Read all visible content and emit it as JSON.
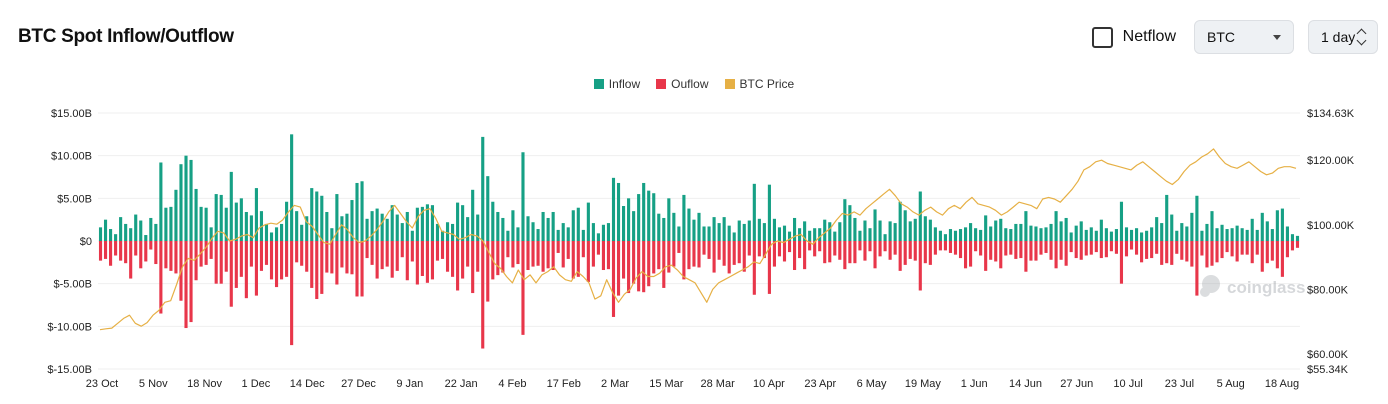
{
  "header": {
    "title": "BTC Spot Inflow/Outflow",
    "netflow_label": "Netflow",
    "coin_selected": "BTC",
    "period_selected": "1 day"
  },
  "colors": {
    "inflow": "#16a085",
    "outflow": "#e8364a",
    "price": "#e6b045"
  },
  "watermark": "coinglass",
  "chart_data": {
    "type": "bar",
    "legend": [
      "Inflow",
      "Ouflow",
      "BTC Price"
    ],
    "legend_position": "top-center",
    "y_left": {
      "ticks": [
        "$15.00B",
        "$10.00B",
        "$5.00B",
        "$0",
        "$-5.00B",
        "$-10.00B",
        "$-15.00B"
      ],
      "range": [
        -15,
        15
      ],
      "unit": "B"
    },
    "y_right": {
      "ticks": [
        "$134.63K",
        "$120.00K",
        "$100.00K",
        "$80.00K",
        "$60.00K",
        "$55.34K"
      ],
      "range": [
        55.34,
        134.63
      ],
      "unit": "K"
    },
    "x_ticks": [
      "23 Oct",
      "5 Nov",
      "18 Nov",
      "1 Dec",
      "14 Dec",
      "27 Dec",
      "9 Jan",
      "22 Jan",
      "4 Feb",
      "17 Feb",
      "2 Mar",
      "15 Mar",
      "28 Mar",
      "10 Apr",
      "23 Apr",
      "6 May",
      "19 May",
      "1 Jun",
      "14 Jun",
      "27 Jun",
      "10 Jul",
      "23 Jul",
      "5 Aug",
      "18 Aug"
    ],
    "start_date": "23 Oct",
    "end_date": "20 Aug",
    "grid": true,
    "series": [
      {
        "name": "Inflow",
        "values": [
          1.6,
          2.5,
          1.4,
          0.8,
          2.8,
          2.0,
          1.5,
          3.1,
          2.4,
          0.7,
          2.7,
          2.0,
          9.2,
          3.9,
          4.0,
          6.0,
          9.0,
          10.0,
          9.5,
          6.1,
          4.0,
          3.9,
          1.6,
          5.5,
          5.4,
          3.9,
          8.1,
          4.5,
          5.0,
          3.4,
          3.0,
          6.2,
          3.5,
          2.0,
          1.0,
          1.6,
          2.0,
          4.6,
          12.5,
          3.5,
          1.9,
          2.9,
          6.2,
          5.8,
          5.3,
          3.4,
          1.5,
          5.5,
          2.9,
          3.2,
          4.8,
          6.8,
          7.0,
          2.6,
          3.5,
          3.8,
          3.2,
          2.6,
          4.2,
          3.1,
          2.1,
          3.4,
          1.2,
          3.9,
          4.0,
          4.3,
          4.2,
          2.0,
          1.2,
          2.2,
          2.0,
          4.5,
          4.2,
          2.8,
          6.0,
          3.1,
          12.2,
          7.6,
          4.6,
          3.4,
          2.7,
          1.2,
          3.6,
          1.6,
          10.4,
          2.9,
          2.2,
          1.4,
          3.4,
          2.7,
          3.4,
          1.3,
          2.1,
          1.6,
          3.6,
          3.9,
          1.3,
          4.5,
          2.1,
          0.9,
          1.9,
          2.1,
          7.4,
          6.8,
          4.1,
          5.0,
          3.5,
          5.5,
          6.8,
          5.9,
          5.6,
          3.2,
          2.7,
          5.0,
          3.3,
          1.7,
          5.4,
          3.8,
          2.5,
          3.3,
          1.7,
          1.7,
          2.8,
          2.1,
          2.8,
          1.8,
          1.0,
          2.4,
          2.0,
          2.4,
          6.7,
          2.6,
          2.1,
          6.6,
          2.6,
          1.6,
          1.8,
          1.1,
          2.7,
          1.5,
          2.3,
          1.2,
          1.5,
          1.5,
          2.5,
          2.2,
          1.1,
          2.2,
          4.9,
          4.2,
          2.7,
          1.2,
          2.4,
          1.5,
          3.7,
          2.4,
          0.8,
          2.3,
          2.1,
          4.6,
          3.6,
          2.3,
          2.6,
          5.8,
          2.9,
          2.5,
          1.6,
          1.2,
          0.8,
          1.4,
          1.2,
          1.4,
          1.6,
          2.1,
          1.5,
          1.3,
          3.0,
          1.7,
          2.4,
          2.6,
          1.5,
          1.4,
          2.0,
          2.0,
          3.5,
          1.8,
          1.7,
          1.5,
          1.6,
          2.0,
          3.5,
          2.3,
          2.7,
          1.0,
          1.8,
          2.3,
          1.3,
          1.6,
          1.2,
          2.5,
          1.5,
          1.1,
          1.4,
          4.6,
          1.6,
          1.3,
          1.5,
          1.0,
          1.2,
          1.6,
          2.8,
          2.1,
          5.4,
          3.1,
          1.2,
          2.1,
          1.7,
          3.3,
          5.3,
          1.2,
          2.0,
          3.5,
          1.5,
          1.9,
          1.4,
          1.5,
          1.8,
          1.5,
          1.3,
          2.6,
          1.3,
          3.3,
          2.3,
          1.4,
          3.6,
          3.8,
          1.7,
          0.8,
          0.6
        ]
      },
      {
        "name": "Ouflow",
        "values": [
          -2.3,
          -2.1,
          -2.9,
          -1.7,
          -2.3,
          -2.6,
          -4.4,
          -1.7,
          -3.2,
          -2.4,
          -1.0,
          -2.7,
          -8.5,
          -3.2,
          -3.5,
          -3.8,
          -7.0,
          -10.2,
          -9.5,
          -4.6,
          -3.0,
          -2.8,
          -2.1,
          -5.0,
          -5.0,
          -3.6,
          -7.7,
          -5.5,
          -4.2,
          -6.7,
          -3.0,
          -6.4,
          -3.5,
          -2.8,
          -4.5,
          -5.4,
          -4.5,
          -4.2,
          -12.2,
          -2.5,
          -2.9,
          -3.6,
          -5.5,
          -6.8,
          -6.2,
          -3.7,
          -3.8,
          -5.1,
          -3.1,
          -3.8,
          -3.9,
          -6.5,
          -6.5,
          -2.0,
          -2.8,
          -4.4,
          -3.3,
          -3.0,
          -4.3,
          -3.5,
          -1.9,
          -4.6,
          -2.4,
          -5.1,
          -4.1,
          -4.9,
          -4.5,
          -2.3,
          -2.1,
          -3.6,
          -4.2,
          -5.8,
          -4.4,
          -3.0,
          -6.1,
          -3.6,
          -12.6,
          -7.1,
          -4.5,
          -4.0,
          -3.7,
          -1.9,
          -3.1,
          -2.7,
          -11.0,
          -3.4,
          -3.0,
          -2.9,
          -3.6,
          -3.2,
          -3.4,
          -1.4,
          -3.1,
          -2.1,
          -4.4,
          -4.2,
          -1.9,
          -4.8,
          -3.0,
          -1.6,
          -3.4,
          -3.3,
          -8.9,
          -6.4,
          -4.4,
          -6.1,
          -5.0,
          -5.9,
          -6.0,
          -5.3,
          -3.8,
          -3.3,
          -5.5,
          -3.7,
          -3.0,
          -1.4,
          -4.5,
          -3.3,
          -3.0,
          -3.1,
          -1.6,
          -2.1,
          -3.7,
          -2.2,
          -2.9,
          -3.8,
          -2.8,
          -2.6,
          -3.6,
          -1.7,
          -6.3,
          -1.8,
          -2.0,
          -6.2,
          -3.0,
          -1.8,
          -2.4,
          -1.3,
          -3.4,
          -2.0,
          -3.3,
          -1.1,
          -1.8,
          -1.2,
          -2.6,
          -2.5,
          -1.7,
          -2.2,
          -3.3,
          -2.6,
          -2.6,
          -1.1,
          -2.3,
          -1.2,
          -3.2,
          -1.8,
          -1.2,
          -2.2,
          -1.6,
          -3.5,
          -2.8,
          -2.1,
          -2.3,
          -5.8,
          -2.6,
          -2.8,
          -1.6,
          -1.1,
          -1.1,
          -1.4,
          -1.6,
          -2.0,
          -3.2,
          -3.0,
          -1.2,
          -1.7,
          -3.5,
          -2.2,
          -2.4,
          -3.2,
          -1.7,
          -1.6,
          -2.1,
          -2.0,
          -3.6,
          -2.3,
          -2.3,
          -1.6,
          -1.4,
          -2.2,
          -3.2,
          -2.2,
          -2.9,
          -1.3,
          -2.0,
          -2.2,
          -1.7,
          -1.6,
          -1.3,
          -2.0,
          -1.9,
          -1.2,
          -1.5,
          -5.0,
          -1.8,
          -1.0,
          -1.6,
          -2.5,
          -2.1,
          -2.0,
          -1.5,
          -2.8,
          -2.6,
          -2.8,
          -1.5,
          -2.2,
          -2.4,
          -3.0,
          -6.4,
          -1.7,
          -3.1,
          -2.9,
          -2.5,
          -2.0,
          -1.3,
          -1.8,
          -2.4,
          -1.6,
          -1.6,
          -2.6,
          -1.6,
          -3.6,
          -2.6,
          -2.3,
          -3.2,
          -4.2,
          -1.9,
          -1.1,
          -0.8
        ]
      },
      {
        "name": "BTC Price",
        "values": [
          67.5,
          67.8,
          68.0,
          69.5,
          71.0,
          72.0,
          69.5,
          68.6,
          69.7,
          72.0,
          73.5,
          76.0,
          76.5,
          81.5,
          87.0,
          89.6,
          89.0,
          91.0,
          93.0,
          95.8,
          98.0,
          97.5,
          95.0,
          95.5,
          96.5,
          97.0,
          96.0,
          99.0,
          100.0,
          100.5,
          100.2,
          101.5,
          104.0,
          106.0,
          105.5,
          101.0,
          99.5,
          97.0,
          94.5,
          94.0,
          97.0,
          100.0,
          98.5,
          96.0,
          94.5,
          95.0,
          96.5,
          98.5,
          101.0,
          104.0,
          106.0,
          103.5,
          101.0,
          99.0,
          102.5,
          104.5,
          105.0,
          102.0,
          98.0,
          97.5,
          97.0,
          95.5,
          96.0,
          97.0,
          96.5,
          95.0,
          91.5,
          88.0,
          86.5,
          84.0,
          82.0,
          86.0,
          83.0,
          84.5,
          82.0,
          84.5,
          85.5,
          87.0,
          84.5,
          83.0,
          82.5,
          85.5,
          84.0,
          82.0,
          77.0,
          78.0,
          83.0,
          79.0,
          76.0,
          78.5,
          80.0,
          83.5,
          85.5,
          84.0,
          84.0,
          85.0,
          87.0,
          87.5,
          86.0,
          84.0,
          83.0,
          82.0,
          79.0,
          76.0,
          80.0,
          82.0,
          83.0,
          84.0,
          85.0,
          86.0,
          87.0,
          88.5,
          88.0,
          91.0,
          94.0,
          95.0,
          94.5,
          95.5,
          96.5,
          97.0,
          95.0,
          94.0,
          96.0,
          97.5,
          99.0,
          101.5,
          103.5,
          103.0,
          104.0,
          103.0,
          105.0,
          106.5,
          108.0,
          109.5,
          111.0,
          109.0,
          106.5,
          105.5,
          104.0,
          103.0,
          104.5,
          105.5,
          104.0,
          103.0,
          105.0,
          106.0,
          105.0,
          107.0,
          108.5,
          106.5,
          106.0,
          105.5,
          104.5,
          103.0,
          104.0,
          105.5,
          107.0,
          106.5,
          106.0,
          105.0,
          108.0,
          108.5,
          108.0,
          107.0,
          109.0,
          111.0,
          113.5,
          117.0,
          118.0,
          119.5,
          120.0,
          119.0,
          118.5,
          118.0,
          117.5,
          117.0,
          118.5,
          119.5,
          118.0,
          116.5,
          115.0,
          113.5,
          112.5,
          114.0,
          116.5,
          118.5,
          119.5,
          121.0,
          122.0,
          123.5,
          121.0,
          119.0,
          118.0,
          117.5,
          118.5,
          119.5,
          118.0,
          116.5,
          115.5,
          116.0,
          117.5,
          118.0,
          118.0,
          117.5
        ]
      }
    ]
  }
}
